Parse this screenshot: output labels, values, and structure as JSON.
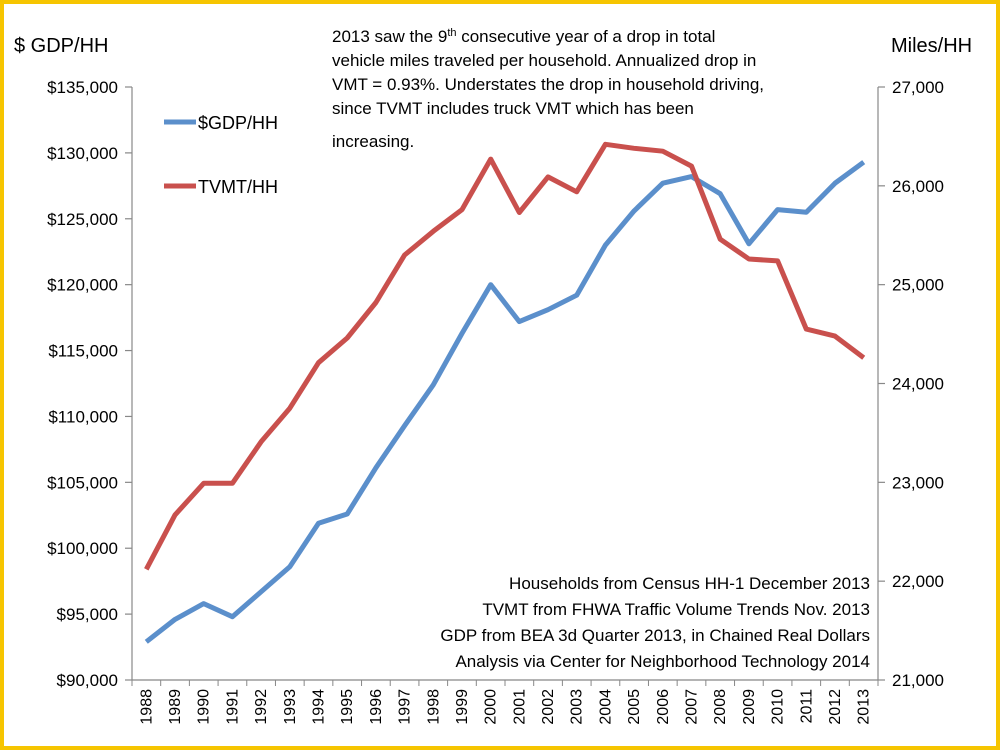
{
  "chart_data": {
    "type": "line",
    "left_axis_title": "$ GDP/HH",
    "right_axis_title": "Miles/HH",
    "x": [
      "1988",
      "1989",
      "1990",
      "1991",
      "1992",
      "1993",
      "1994",
      "1995",
      "1996",
      "1997",
      "1998",
      "1999",
      "2000",
      "2001",
      "2002",
      "2003",
      "2004",
      "2005",
      "2006",
      "2007",
      "2008",
      "2009",
      "2010",
      "2011",
      "2012",
      "2013"
    ],
    "y_left": {
      "min": 90000,
      "max": 135000,
      "step": 5000,
      "tick_labels": [
        "$90,000",
        "$95,000",
        "$100,000",
        "$105,000",
        "$110,000",
        "$115,000",
        "$120,000",
        "$125,000",
        "$130,000",
        "$135,000"
      ]
    },
    "y_right": {
      "min": 21000,
      "max": 27000,
      "step": 1000,
      "tick_labels": [
        "21,000",
        "22,000",
        "23,000",
        "24,000",
        "25,000",
        "26,000",
        "27,000"
      ]
    },
    "series": [
      {
        "name": "$GDP/HH",
        "axis": "left",
        "color": "#5b8fcb",
        "values": [
          92900,
          94600,
          95800,
          94800,
          96700,
          98600,
          101900,
          102600,
          106100,
          109300,
          112400,
          116300,
          120000,
          117200,
          118100,
          119200,
          123000,
          125600,
          127700,
          128200,
          126900,
          123100,
          125700,
          125500,
          127700,
          129300
        ]
      },
      {
        "name": "TVMT/HH",
        "axis": "right",
        "color": "#c9504d",
        "values": [
          22120,
          22670,
          22990,
          22990,
          23410,
          23750,
          24210,
          24460,
          24820,
          25300,
          25540,
          25760,
          26270,
          25730,
          26090,
          25940,
          26420,
          26380,
          26350,
          26200,
          25460,
          25260,
          25240,
          24550,
          24480,
          24260
        ]
      }
    ],
    "annotation_lines": [
      "2013 saw the 9th consecutive year of a drop in total",
      "vehicle miles traveled per household. Annualized drop in",
      "VMT = 0.93%. Understates the drop in household driving,",
      "since TVMT includes truck VMT which has been",
      "increasing."
    ],
    "source_lines": [
      "Households from Census HH-1 December 2013",
      "TVMT from FHWA Traffic Volume Trends Nov. 2013",
      "GDP from BEA 3d Quarter 2013, in Chained Real Dollars",
      "Analysis via Center for Neighborhood Technology 2014"
    ],
    "grid": false,
    "legend_placement": "top-left"
  }
}
